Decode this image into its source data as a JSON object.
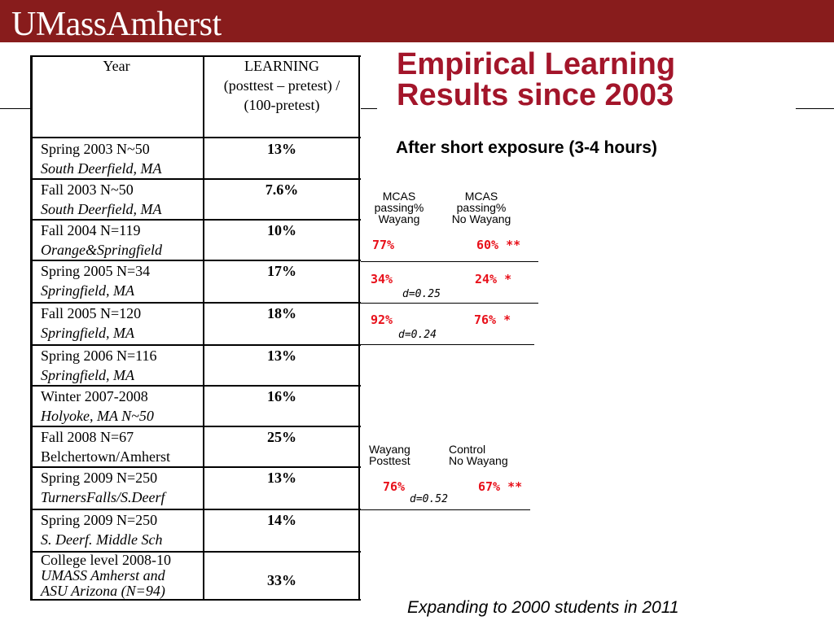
{
  "header": {
    "logo": "UMassAmherst",
    "brand_color": "#881c1c"
  },
  "title": {
    "line1": "Empirical Learning",
    "line2": "Results since 2003",
    "color": "#a3152a"
  },
  "subtitle": "After short exposure (3-4  hours)",
  "table": {
    "header_year": "Year",
    "header_learning": [
      "LEARNING",
      "(posttest – pretest) /",
      "(100-pretest)"
    ],
    "rows": [
      {
        "line1": "Spring 2003 N~50",
        "line2": "South Deerfield, MA",
        "value": "13%"
      },
      {
        "line1": "Fall 2003  N~50",
        "line2": "South Deerfield, MA",
        "value": "7.6%"
      },
      {
        "line1": "Fall 2004 N=119",
        "line2": "Orange&Springfield",
        "value": "10%"
      },
      {
        "line1": "Spring 2005 N=34",
        "line2": "Springfield, MA",
        "value": "17%"
      },
      {
        "line1": "Fall 2005  N=120",
        "line2": "Springfield, MA",
        "value": "18%"
      },
      {
        "line1": "Spring 2006  N=116",
        "line2": "Springfield, MA",
        "value": "13%"
      },
      {
        "line1": "Winter 2007-2008",
        "line2": "Holyoke, MA  N~50",
        "value": "16%"
      },
      {
        "line1": "Fall 2008 N=67",
        "line2": "Belchertown/Amherst",
        "value": "25%"
      },
      {
        "line1": "Spring 2009 N=250",
        "line2": "TurnersFalls/S.Deerf",
        "value": "13%"
      },
      {
        "line1": "Spring 2009 N=250",
        "line2": "S. Deerf. Middle Sch",
        "value": "14%"
      },
      {
        "line1": "College level 2008-10",
        "line2": "UMASS Amherst and",
        "line3": "ASU Arizona (N=94)",
        "value": "33%"
      }
    ]
  },
  "mcas": {
    "col1_header": [
      "MCAS",
      "passing%",
      "Wayang"
    ],
    "col2_header": [
      "MCAS",
      "passing%",
      "No Wayang"
    ],
    "rows": [
      {
        "wayang": "77%",
        "no_wayang": "60% **",
        "d": ""
      },
      {
        "wayang": "34%",
        "no_wayang": "24% *",
        "d": "d=0.25"
      },
      {
        "wayang": "92%",
        "no_wayang": "76% *",
        "d": "d=0.24"
      }
    ]
  },
  "posttest": {
    "col1_header": [
      "Wayang",
      "Posttest"
    ],
    "col2_header": [
      "Control",
      "No Wayang"
    ],
    "wayang": "76%",
    "control": "67% **",
    "d": "d=0.52"
  },
  "highlight_color": "#e8101a",
  "footer": "Expanding to 2000 students in 2011"
}
